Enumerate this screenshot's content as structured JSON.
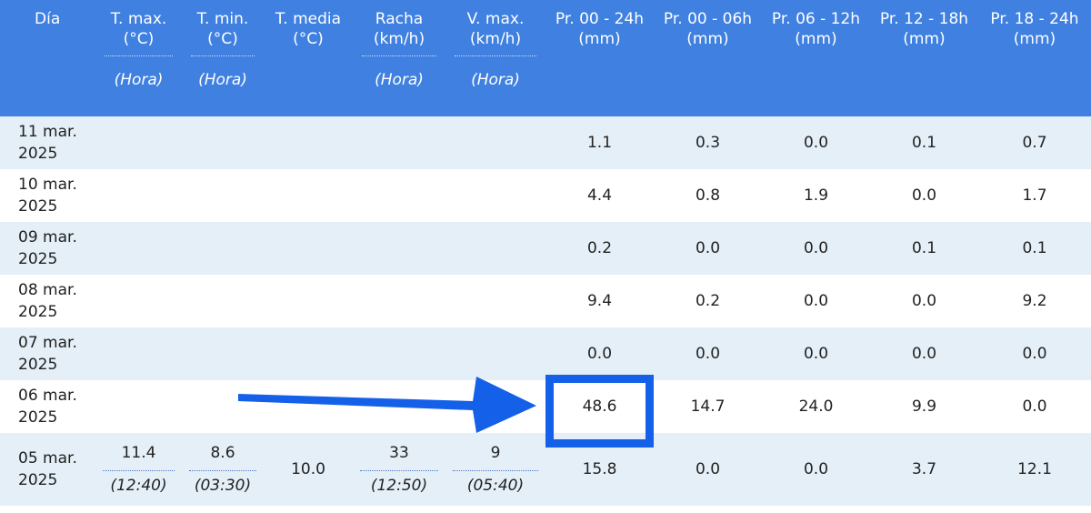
{
  "headers": {
    "dia": {
      "name": "Día"
    },
    "tmax": {
      "name": "T. max.",
      "unit": "(°C)",
      "hora": "(Hora)"
    },
    "tmin": {
      "name": "T. min.",
      "unit": "(°C)",
      "hora": "(Hora)"
    },
    "tmedia": {
      "name": "T. media",
      "unit": "(°C)"
    },
    "racha": {
      "name": "Racha",
      "unit": "(km/h)",
      "hora": "(Hora)"
    },
    "vmax": {
      "name": "V. max.",
      "unit": "(km/h)",
      "hora": "(Hora)"
    },
    "pr0024": {
      "name": "Pr. 00 - 24h",
      "unit": "(mm)"
    },
    "pr0006": {
      "name": "Pr. 00 - 06h",
      "unit": "(mm)"
    },
    "pr0612": {
      "name": "Pr. 06 - 12h",
      "unit": "(mm)"
    },
    "pr1218": {
      "name": "Pr. 12 - 18h",
      "unit": "(mm)"
    },
    "pr1824": {
      "name": "Pr. 18 - 24h",
      "unit": "(mm)"
    }
  },
  "rows": [
    {
      "dia_line1": "11 mar.",
      "dia_line2": "2025",
      "pr0024": "1.1",
      "pr0006": "0.3",
      "pr0612": "0.0",
      "pr1218": "0.1",
      "pr1824": "0.7"
    },
    {
      "dia_line1": "10 mar.",
      "dia_line2": "2025",
      "pr0024": "4.4",
      "pr0006": "0.8",
      "pr0612": "1.9",
      "pr1218": "0.0",
      "pr1824": "1.7"
    },
    {
      "dia_line1": "09 mar.",
      "dia_line2": "2025",
      "pr0024": "0.2",
      "pr0006": "0.0",
      "pr0612": "0.0",
      "pr1218": "0.1",
      "pr1824": "0.1"
    },
    {
      "dia_line1": "08 mar.",
      "dia_line2": "2025",
      "pr0024": "9.4",
      "pr0006": "0.2",
      "pr0612": "0.0",
      "pr1218": "0.0",
      "pr1824": "9.2"
    },
    {
      "dia_line1": "07 mar.",
      "dia_line2": "2025",
      "pr0024": "0.0",
      "pr0006": "0.0",
      "pr0612": "0.0",
      "pr1218": "0.0",
      "pr1824": "0.0"
    },
    {
      "dia_line1": "06 mar.",
      "dia_line2": "2025",
      "pr0024": "48.6",
      "pr0006": "14.7",
      "pr0612": "24.0",
      "pr1218": "9.9",
      "pr1824": "0.0"
    },
    {
      "dia_line1": "05 mar.",
      "dia_line2": "2025",
      "tmax": "11.4",
      "tmax_hora": "(12:40)",
      "tmin": "8.6",
      "tmin_hora": "(03:30)",
      "tmedia": "10.0",
      "racha": "33",
      "racha_hora": "(12:50)",
      "vmax": "9",
      "vmax_hora": "(05:40)",
      "pr0024": "15.8",
      "pr0006": "0.0",
      "pr0612": "0.0",
      "pr1218": "3.7",
      "pr1824": "12.1"
    }
  ],
  "annotation": {
    "highlight_color": "#1460e8",
    "arrow_color": "#1460e8",
    "highlighted_value": "48.6"
  }
}
